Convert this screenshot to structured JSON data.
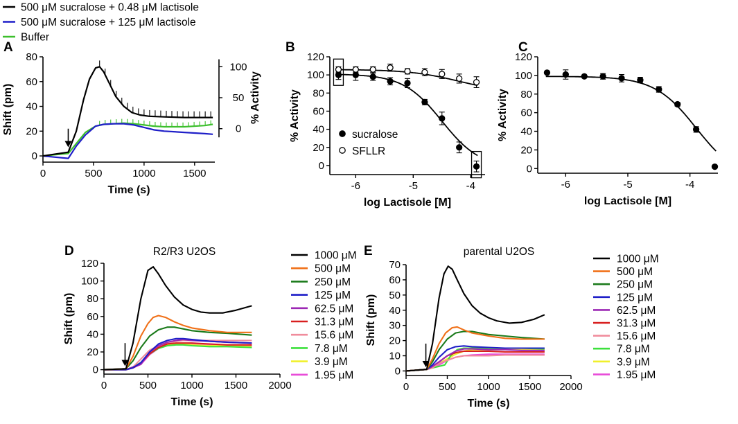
{
  "top_legend": [
    {
      "label": "500 μM sucralose + 0.48 μM lactisole",
      "color": "#000000"
    },
    {
      "label": "500 μM sucralose + 125 μM lactisole",
      "color": "#1f1fc8"
    },
    {
      "label": "Buffer",
      "color": "#3cbf2c"
    }
  ],
  "conc_legend": [
    {
      "label": "1000 μM",
      "color": "#000000"
    },
    {
      "label": "500 μM",
      "color": "#f07018"
    },
    {
      "label": "250 μM",
      "color": "#1a7a1a"
    },
    {
      "label": "125 μM",
      "color": "#1f1fc8"
    },
    {
      "label": "62.5 μM",
      "color": "#9c28b4"
    },
    {
      "label": "31.3 μM",
      "color": "#d81f1f"
    },
    {
      "label": "15.6 μM",
      "color": "#f08c9c"
    },
    {
      "label": "7.8 μM",
      "color": "#3ce03c"
    },
    {
      "label": "3.9 μM",
      "color": "#f0f02c"
    },
    {
      "label": "1.95 μM",
      "color": "#e84cd8"
    }
  ],
  "chart_data": [
    {
      "panel": "A",
      "type": "line",
      "xlabel": "Time (s)",
      "ylabel": "Shift (pm)",
      "ylabel_right": "% Activity",
      "xlim": [
        0,
        1700
      ],
      "ylim": [
        -5,
        80
      ],
      "xticks": [
        0,
        500,
        1000,
        1500
      ],
      "yticks": [
        0,
        20,
        40,
        60,
        80
      ],
      "right_ticks": [
        {
          "label": "100",
          "shift": 72
        },
        {
          "label": "50",
          "shift": 47
        },
        {
          "label": "0",
          "shift": 22
        }
      ],
      "arrow_x": 250,
      "series": [
        {
          "name": "500 μM sucralose + 0.48 μM lactisole",
          "color": "#000000",
          "error_bars": true,
          "x": [
            0,
            120,
            250,
            330,
            400,
            460,
            520,
            560,
            600,
            660,
            720,
            800,
            880,
            960,
            1050,
            1200,
            1400,
            1600,
            1680
          ],
          "y": [
            0,
            1.5,
            3,
            20,
            45,
            62,
            71,
            72,
            68,
            58,
            48,
            40,
            35,
            33,
            32,
            31.5,
            31,
            31,
            31
          ]
        },
        {
          "name": "500 μM sucralose + 125 μM lactisole",
          "color": "#1f1fc8",
          "error_bars": false,
          "x": [
            0,
            120,
            250,
            330,
            420,
            520,
            600,
            700,
            800,
            900,
            1000,
            1100,
            1200,
            1400,
            1600,
            1680
          ],
          "y": [
            0,
            -1,
            -2,
            8,
            17,
            24,
            25.5,
            26,
            26,
            25,
            23,
            21,
            20,
            19,
            18,
            17.5
          ]
        },
        {
          "name": "Buffer",
          "color": "#3cbf2c",
          "error_bars": true,
          "x": [
            0,
            120,
            250,
            330,
            420,
            520,
            600,
            700,
            800,
            900,
            1000,
            1100,
            1200,
            1400,
            1600,
            1680
          ],
          "y": [
            0,
            1,
            2,
            10,
            19,
            24,
            25.5,
            26,
            26.5,
            26,
            25,
            24,
            23.5,
            23.5,
            24.5,
            25.5
          ]
        }
      ]
    },
    {
      "panel": "B",
      "type": "scatter",
      "xlabel": "log Lactisole [M]",
      "ylabel": "% Activity",
      "xlim": [
        -6.45,
        -3.75
      ],
      "ylim": [
        -10,
        120
      ],
      "xticks": [
        -6,
        -5,
        -4
      ],
      "yticks": [
        0,
        20,
        40,
        60,
        80,
        100,
        120
      ],
      "series": [
        {
          "name": "sucralose",
          "marker": "filled",
          "x": [
            -6.3,
            -6.0,
            -5.7,
            -5.4,
            -5.1,
            -4.8,
            -4.5,
            -4.2,
            -3.9
          ],
          "y": [
            100,
            100,
            98,
            93,
            91,
            70,
            52,
            20,
            -1
          ],
          "err": [
            5,
            6,
            4,
            4,
            5,
            3,
            7,
            6,
            6
          ],
          "fit": {
            "top": 101,
            "bottom": -3,
            "ic50": -4.5,
            "hill": 1.3
          }
        },
        {
          "name": "SFLLR",
          "marker": "open",
          "x": [
            -6.3,
            -6.0,
            -5.7,
            -5.4,
            -5.1,
            -4.8,
            -4.5,
            -4.2,
            -3.9
          ],
          "y": [
            106,
            106,
            106,
            108,
            104,
            103,
            101,
            96,
            92
          ],
          "err": [
            3,
            3,
            3,
            4,
            3,
            4,
            5,
            5,
            6
          ],
          "fit": {
            "top": 106,
            "bottom": 80,
            "ic50": -4.2,
            "hill": 1.0
          }
        }
      ],
      "boxes": [
        -6.3,
        -3.9
      ],
      "legend": [
        "sucralose",
        "SFLLR"
      ]
    },
    {
      "panel": "C",
      "type": "scatter",
      "xlabel": "log Lactisole [M]",
      "ylabel": "% Activity",
      "xlim": [
        -6.45,
        -3.55
      ],
      "ylim": [
        -5,
        120
      ],
      "xticks": [
        -6,
        -5,
        -4
      ],
      "yticks": [
        0,
        20,
        40,
        60,
        80,
        100,
        120
      ],
      "series": [
        {
          "name": "sucralose",
          "marker": "filled",
          "x": [
            -6.3,
            -6.0,
            -5.7,
            -5.4,
            -5.1,
            -4.8,
            -4.5,
            -4.2,
            -3.9,
            -3.6
          ],
          "y": [
            103,
            101,
            99,
            99,
            97,
            95,
            85,
            69,
            42,
            2
          ],
          "err": [
            0,
            5,
            0,
            3,
            4,
            3,
            3,
            2,
            3,
            0
          ],
          "fit": {
            "top": 99,
            "bottom": -12,
            "ic50": -3.9,
            "hill": 1.3
          }
        }
      ]
    },
    {
      "panel": "D",
      "title": "R2/R3 U2OS",
      "type": "line",
      "xlabel": "Time (s)",
      "ylabel": "Shift (pm)",
      "xlim": [
        0,
        2000
      ],
      "ylim": [
        -5,
        120
      ],
      "xticks": [
        0,
        500,
        1000,
        1500,
        2000
      ],
      "yticks": [
        0,
        20,
        40,
        60,
        80,
        100,
        120
      ],
      "arrow_x": 240,
      "series": [
        {
          "name": "1000 μM",
          "color": "#000000",
          "x": [
            0,
            250,
            330,
            420,
            500,
            560,
            620,
            700,
            800,
            900,
            1000,
            1100,
            1200,
            1350,
            1500,
            1680
          ],
          "y": [
            0,
            1,
            30,
            80,
            112,
            116,
            108,
            95,
            82,
            73,
            68,
            65,
            64,
            64,
            67,
            72
          ]
        },
        {
          "name": "500 μM",
          "color": "#f07018",
          "x": [
            0,
            250,
            330,
            420,
            500,
            560,
            620,
            700,
            800,
            900,
            1000,
            1200,
            1400,
            1680
          ],
          "y": [
            0,
            1,
            15,
            38,
            52,
            59,
            61,
            59,
            54,
            50,
            47,
            44,
            42,
            42
          ]
        },
        {
          "name": "250 μM",
          "color": "#1a7a1a",
          "x": [
            0,
            250,
            330,
            420,
            520,
            620,
            720,
            800,
            900,
            1000,
            1200,
            1400,
            1680
          ],
          "y": [
            0,
            1,
            10,
            25,
            38,
            45,
            48,
            48,
            46,
            44,
            42,
            41,
            39
          ]
        },
        {
          "name": "125 μM",
          "color": "#1f1fc8",
          "x": [
            0,
            250,
            330,
            420,
            520,
            620,
            720,
            820,
            900,
            1000,
            1200,
            1400,
            1680
          ],
          "y": [
            0,
            0,
            2,
            8,
            20,
            29,
            33,
            35,
            35,
            34,
            32,
            31,
            30
          ]
        },
        {
          "name": "62.5 μM",
          "color": "#9c28b4",
          "x": [
            0,
            250,
            330,
            420,
            520,
            620,
            720,
            820,
            900,
            1000,
            1200,
            1400,
            1680
          ],
          "y": [
            0,
            0,
            3,
            6,
            20,
            27,
            31,
            33,
            34,
            33,
            32,
            31,
            30
          ]
        },
        {
          "name": "31.3 μM",
          "color": "#d81f1f",
          "x": [
            0,
            250,
            330,
            420,
            520,
            620,
            720,
            820,
            900,
            1000,
            1200,
            1400,
            1680
          ],
          "y": [
            0,
            0,
            2,
            7,
            18,
            25,
            29,
            30,
            30,
            30,
            29,
            28,
            28
          ]
        },
        {
          "name": "15.6 μM",
          "color": "#f08c9c",
          "x": [
            0,
            250,
            330,
            420,
            520,
            620,
            720,
            820,
            900,
            1000,
            1200,
            1400,
            1680
          ],
          "y": [
            0,
            0,
            3,
            12,
            22,
            27,
            30,
            32,
            33,
            33,
            33,
            33,
            33
          ]
        },
        {
          "name": "7.8 μM",
          "color": "#3ce03c",
          "x": [
            0,
            250,
            330,
            420,
            520,
            620,
            720,
            820,
            900,
            1000,
            1200,
            1400,
            1680
          ],
          "y": [
            0,
            0,
            3,
            8,
            18,
            24,
            27,
            28,
            28,
            27,
            26,
            26,
            25
          ]
        },
        {
          "name": "3.9 μM",
          "color": "#f0f02c",
          "x": [
            0,
            250,
            330,
            420,
            520,
            620,
            720,
            820,
            900,
            1000,
            1200,
            1400,
            1680
          ],
          "y": [
            0,
            0,
            3,
            8,
            18,
            25,
            28,
            29,
            29,
            28,
            27,
            27,
            26
          ]
        },
        {
          "name": "1.95 μM",
          "color": "#e84cd8",
          "x": [
            0,
            250,
            330,
            420,
            520,
            620,
            720,
            820,
            900,
            1000,
            1200,
            1400,
            1680
          ],
          "y": [
            0,
            0,
            2,
            6,
            17,
            24,
            28,
            29,
            29,
            29,
            28,
            28,
            27
          ]
        }
      ]
    },
    {
      "panel": "E",
      "title": "parental U2OS",
      "type": "line",
      "xlabel": "Time (s)",
      "ylabel": "Shift (pm)",
      "xlim": [
        0,
        2000
      ],
      "ylim": [
        -3,
        70
      ],
      "xticks": [
        0,
        500,
        1000,
        1500,
        2000
      ],
      "yticks": [
        0,
        10,
        20,
        30,
        40,
        50,
        60,
        70
      ],
      "arrow_x": 240,
      "series": [
        {
          "name": "1000 μM",
          "color": "#000000",
          "x": [
            0,
            250,
            320,
            400,
            460,
            510,
            560,
            620,
            700,
            800,
            900,
            1000,
            1100,
            1250,
            1400,
            1550,
            1680
          ],
          "y": [
            0,
            1,
            18,
            48,
            64,
            69,
            67,
            60,
            51,
            43,
            38,
            35,
            33,
            31.5,
            32,
            34,
            37
          ]
        },
        {
          "name": "500 μM",
          "color": "#f07018",
          "x": [
            0,
            250,
            320,
            400,
            480,
            560,
            620,
            700,
            800,
            900,
            1000,
            1200,
            1400,
            1680
          ],
          "y": [
            0,
            1,
            8,
            18,
            25,
            28.5,
            29,
            27,
            25,
            24,
            23,
            21.5,
            21,
            21
          ]
        },
        {
          "name": "250 μM",
          "color": "#1a7a1a",
          "x": [
            0,
            250,
            320,
            400,
            500,
            600,
            700,
            800,
            900,
            1000,
            1200,
            1400,
            1680
          ],
          "y": [
            0,
            1,
            6,
            14,
            21,
            25,
            26,
            26,
            25,
            24,
            23,
            22,
            21
          ]
        },
        {
          "name": "125 μM",
          "color": "#1f1fc8",
          "x": [
            0,
            250,
            320,
            400,
            500,
            600,
            700,
            800,
            1000,
            1200,
            1400,
            1680
          ],
          "y": [
            0,
            1,
            4,
            9,
            14,
            16,
            16.5,
            16,
            15.5,
            15,
            15,
            15
          ]
        },
        {
          "name": "62.5 μM",
          "color": "#9c28b4",
          "x": [
            0,
            250,
            320,
            400,
            500,
            600,
            700,
            800,
            1000,
            1200,
            1400,
            1680
          ],
          "y": [
            0,
            1,
            3,
            6,
            10,
            13,
            14.5,
            14.5,
            14,
            14,
            13.5,
            13.5
          ]
        },
        {
          "name": "31.3 μM",
          "color": "#d81f1f",
          "x": [
            0,
            250,
            320,
            400,
            500,
            600,
            700,
            800,
            1000,
            1200,
            1400,
            1680
          ],
          "y": [
            0,
            1,
            3,
            6,
            10,
            12,
            13,
            13,
            13,
            12.5,
            12.5,
            12.5
          ]
        },
        {
          "name": "15.6 μM",
          "color": "#f08c9c",
          "x": [
            0,
            250,
            320,
            400,
            500,
            600,
            700,
            800,
            1000,
            1200,
            1400,
            1680
          ],
          "y": [
            0,
            1,
            2,
            5,
            7,
            9,
            10,
            10,
            10,
            10.5,
            10.5,
            10.5
          ]
        },
        {
          "name": "7.8 μM",
          "color": "#3ce03c",
          "x": [
            0,
            250,
            320,
            400,
            470,
            540,
            620,
            700,
            800,
            1000,
            1200,
            1400,
            1680
          ],
          "y": [
            0,
            1,
            2,
            3,
            4,
            10,
            14,
            15,
            15,
            15,
            15,
            15,
            14.5
          ]
        },
        {
          "name": "3.9 μM",
          "color": "#f0f02c",
          "x": [
            0,
            250,
            320,
            400,
            500,
            600,
            700,
            800,
            1000,
            1200,
            1400,
            1680
          ],
          "y": [
            0,
            1,
            2,
            5,
            8,
            11,
            13,
            14,
            14,
            14,
            14,
            14
          ]
        },
        {
          "name": "1.95 μM",
          "color": "#e84cd8",
          "x": [
            0,
            250,
            320,
            400,
            500,
            600,
            700,
            800,
            1000,
            1200,
            1400,
            1680
          ],
          "y": [
            0,
            1,
            2,
            4,
            7,
            9,
            10,
            10.5,
            11,
            11,
            11,
            11
          ]
        }
      ]
    }
  ]
}
